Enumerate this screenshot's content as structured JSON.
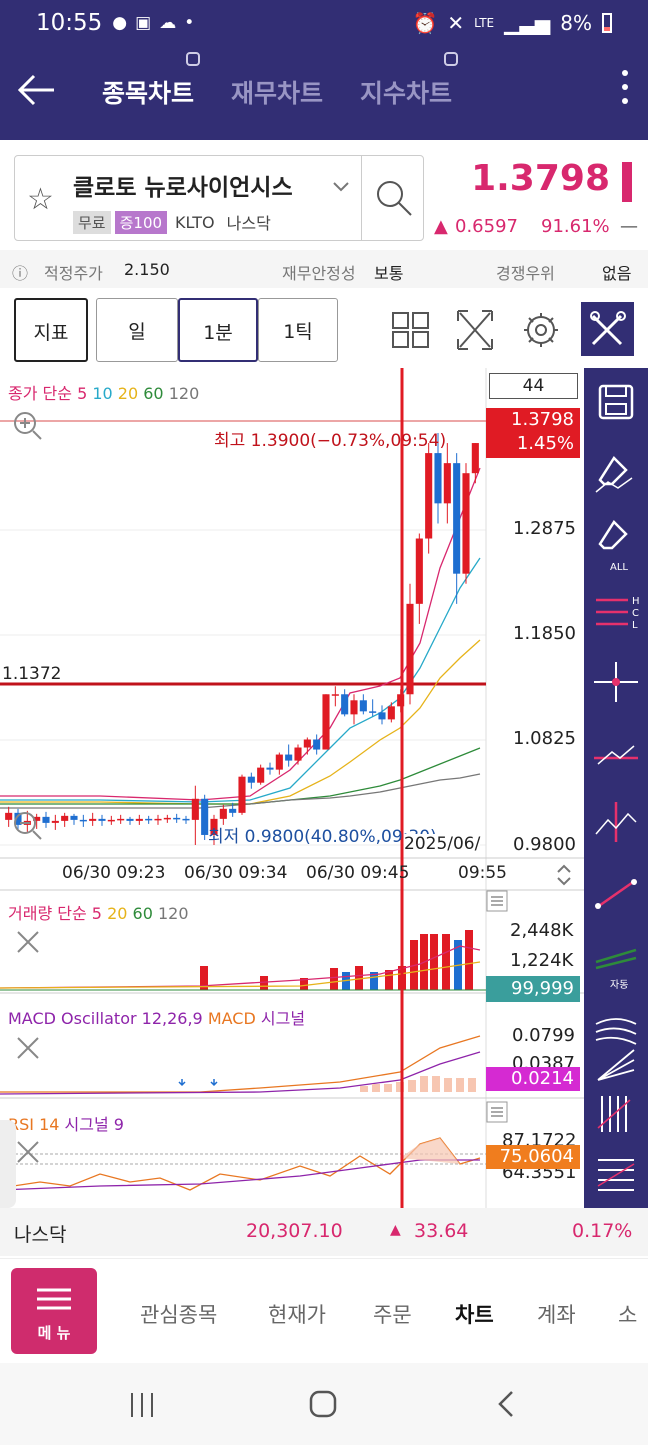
{
  "status": {
    "time": "10:55",
    "network": "LTE",
    "battery": "8%"
  },
  "header": {
    "tabs": [
      {
        "label": "종목차트",
        "active": true
      },
      {
        "label": "재무차트",
        "active": false
      },
      {
        "label": "지수차트",
        "active": false
      }
    ]
  },
  "stock": {
    "name": "클로토 뉴로사이언시스",
    "tags": [
      "무료",
      "증100"
    ],
    "ticker": "KLTO",
    "market": "나스닥",
    "price": "1.3798",
    "change": "0.6597",
    "change_pct": "91.61%",
    "change_dash": "—"
  },
  "info": {
    "fair_label": "적정주가",
    "fair_value": "2.150",
    "stability_label": "재무안정성",
    "stability_value": "보통",
    "competition_label": "경쟁우위",
    "competition_value": "없음"
  },
  "toolbar": {
    "indicator": "지표",
    "day": "일",
    "min1": "1분",
    "tick1": "1틱"
  },
  "chart": {
    "ma_legend_prefix": "종가 단순",
    "ma_legend_items": [
      "5",
      "10",
      "20",
      "60",
      "120"
    ],
    "ma_colors": [
      "#d8286e",
      "#27a9c9",
      "#e6b31a",
      "#2e8b3a",
      "#777777"
    ],
    "count_box": "44",
    "current_price": "1.3798",
    "current_pct": "1.45%",
    "high_label": "최고 1.3900(−0.73%,09:54)",
    "low_label": "최저 0.9800(40.80%,09:30)",
    "hline_label": "1.1372",
    "y_ticks": [
      "1.2875",
      "1.1850",
      "1.0825",
      "0.9800"
    ],
    "date_partial": "2025/06/",
    "x_ticks": [
      "06/30 09:23",
      "06/30 09:34",
      "06/30 09:45",
      "09:55"
    ]
  },
  "chart_data": {
    "type": "candlestick",
    "candles": [
      [
        1.005,
        1.018,
        0.998,
        1.012
      ],
      [
        1.012,
        1.016,
        0.995,
        1.0
      ],
      [
        1.0,
        1.014,
        0.993,
        1.004
      ],
      [
        1.004,
        1.011,
        0.996,
        1.008
      ],
      [
        1.008,
        1.013,
        0.997,
        1.002
      ],
      [
        1.002,
        1.01,
        0.995,
        1.004
      ],
      [
        1.004,
        1.012,
        0.998,
        1.009
      ],
      [
        1.009,
        1.011,
        1.0,
        1.005
      ],
      [
        1.005,
        1.01,
        0.998,
        1.004
      ],
      [
        1.004,
        1.012,
        0.999,
        1.006
      ],
      [
        1.006,
        1.01,
        0.999,
        1.004
      ],
      [
        1.004,
        1.009,
        1.0,
        1.005
      ],
      [
        1.005,
        1.01,
        1.001,
        1.006
      ],
      [
        1.006,
        1.008,
        1.0,
        1.004
      ],
      [
        1.004,
        1.01,
        1.0,
        1.006
      ],
      [
        1.006,
        1.009,
        1.001,
        1.005
      ],
      [
        1.005,
        1.01,
        1.0,
        1.006
      ],
      [
        1.006,
        1.01,
        1.002,
        1.007
      ],
      [
        1.007,
        1.011,
        1.002,
        1.006
      ],
      [
        1.006,
        1.009,
        1.001,
        1.005
      ],
      [
        1.005,
        1.039,
        0.98,
        1.026
      ],
      [
        1.026,
        1.03,
        0.985,
        0.99
      ],
      [
        0.99,
        1.01,
        0.98,
        1.006
      ],
      [
        1.006,
        1.02,
        1.0,
        1.016
      ],
      [
        1.016,
        1.022,
        1.008,
        1.012
      ],
      [
        1.012,
        1.05,
        1.01,
        1.048
      ],
      [
        1.048,
        1.052,
        1.036,
        1.042
      ],
      [
        1.042,
        1.06,
        1.04,
        1.057
      ],
      [
        1.057,
        1.062,
        1.05,
        1.055
      ],
      [
        1.055,
        1.072,
        1.05,
        1.07
      ],
      [
        1.07,
        1.08,
        1.058,
        1.064
      ],
      [
        1.064,
        1.08,
        1.06,
        1.077
      ],
      [
        1.077,
        1.087,
        1.07,
        1.085
      ],
      [
        1.085,
        1.09,
        1.07,
        1.075
      ],
      [
        1.075,
        1.13,
        1.075,
        1.13
      ],
      [
        1.13,
        1.138,
        1.118,
        1.13
      ],
      [
        1.13,
        1.135,
        1.108,
        1.11
      ],
      [
        1.11,
        1.13,
        1.1,
        1.124
      ],
      [
        1.124,
        1.13,
        1.11,
        1.113
      ],
      [
        1.113,
        1.125,
        1.108,
        1.112
      ],
      [
        1.112,
        1.119,
        1.1,
        1.105
      ],
      [
        1.105,
        1.122,
        1.102,
        1.118
      ],
      [
        1.118,
        1.135,
        1.112,
        1.13
      ],
      [
        1.13,
        1.24,
        1.12,
        1.22
      ],
      [
        1.22,
        1.29,
        1.2,
        1.285
      ],
      [
        1.285,
        1.38,
        1.27,
        1.37
      ],
      [
        1.37,
        1.39,
        1.3,
        1.32
      ],
      [
        1.32,
        1.38,
        1.3,
        1.36
      ],
      [
        1.36,
        1.37,
        1.22,
        1.25
      ],
      [
        1.25,
        1.36,
        1.24,
        1.35
      ],
      [
        1.35,
        1.38,
        1.34,
        1.38
      ]
    ],
    "ylim": [
      0.98,
      1.39
    ]
  },
  "volume": {
    "legend_prefix": "거래량 단순",
    "legend_items": [
      "5",
      "20",
      "60",
      "120"
    ],
    "legend_colors": [
      "#d8286e",
      "#e6b31a",
      "#2e8b3a",
      "#777777"
    ],
    "ticks": [
      "2,448K",
      "1,224K"
    ],
    "current": "99,999"
  },
  "macd": {
    "legend_a": "MACD Oscillator 12,26,9",
    "legend_b": "MACD",
    "legend_c": "시그널",
    "ticks": [
      "0.0799",
      "0.0387"
    ],
    "current": "0.0214"
  },
  "rsi": {
    "legend_a": "RSI 14",
    "legend_b": "시그널 9",
    "ticks": [
      "87.1722",
      "64.3551"
    ],
    "current": "75.0604"
  },
  "index_bar": {
    "name": "나스닥",
    "value": "20,307.10",
    "change": "33.64",
    "pct": "0.17%"
  },
  "nav": {
    "menu_label": "메 뉴",
    "items": [
      "관심종목",
      "현재가",
      "주문",
      "차트",
      "계좌",
      "소"
    ],
    "active": "차트"
  },
  "sidebar": {
    "icons": [
      "save-icon",
      "eraser-icon",
      "eraser-all-icon",
      "hcl-line-icon",
      "cross-line-icon",
      "trend-line-icon",
      "peak-line-icon",
      "diagonal-line-icon",
      "auto-line-icon",
      "fan-line-icon",
      "fan-lines-icon",
      "gann-icon",
      "fibonacci-icon"
    ],
    "sub_all": "ALL",
    "sub_auto": "자동",
    "hcl": [
      "H",
      "C",
      "L"
    ]
  }
}
